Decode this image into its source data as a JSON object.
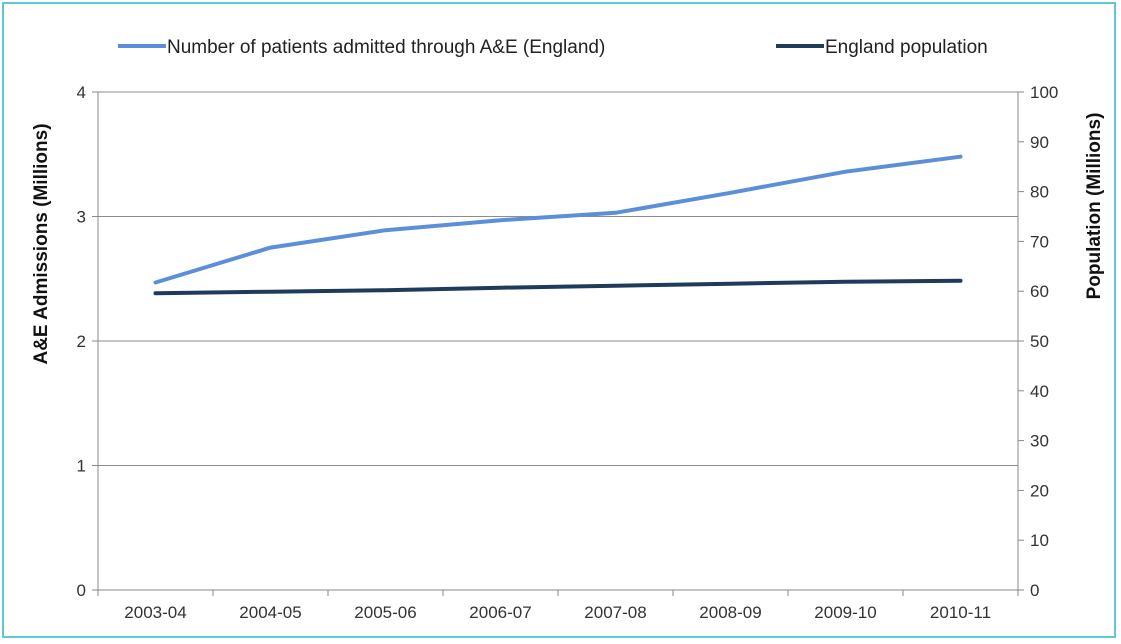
{
  "chart_data": {
    "type": "line",
    "categories": [
      "2003-04",
      "2004-05",
      "2005-06",
      "2006-07",
      "2007-08",
      "2008-09",
      "2009-10",
      "2010-11"
    ],
    "series": [
      {
        "name": "Number of patients admitted through A&E (England)",
        "axis": "left",
        "color": "#5b8fd9",
        "values": [
          2.47,
          2.75,
          2.89,
          2.97,
          3.03,
          3.19,
          3.36,
          3.48
        ]
      },
      {
        "name": "England population",
        "axis": "right",
        "color": "#1f3b5c",
        "values": [
          59.6,
          59.9,
          60.2,
          60.7,
          61.1,
          61.5,
          61.9,
          62.1
        ]
      }
    ],
    "ylabel": "A&E Admissions  (Millions)",
    "y2label": "Population (Millions)",
    "ylim": [
      0,
      4
    ],
    "y2lim": [
      0,
      100
    ],
    "yticks": [
      "0",
      "1",
      "2",
      "3",
      "4"
    ],
    "y2ticks": [
      "0",
      "10",
      "20",
      "30",
      "40",
      "50",
      "60",
      "70",
      "80",
      "90",
      "100"
    ],
    "grid": true,
    "legend_position": "top"
  }
}
